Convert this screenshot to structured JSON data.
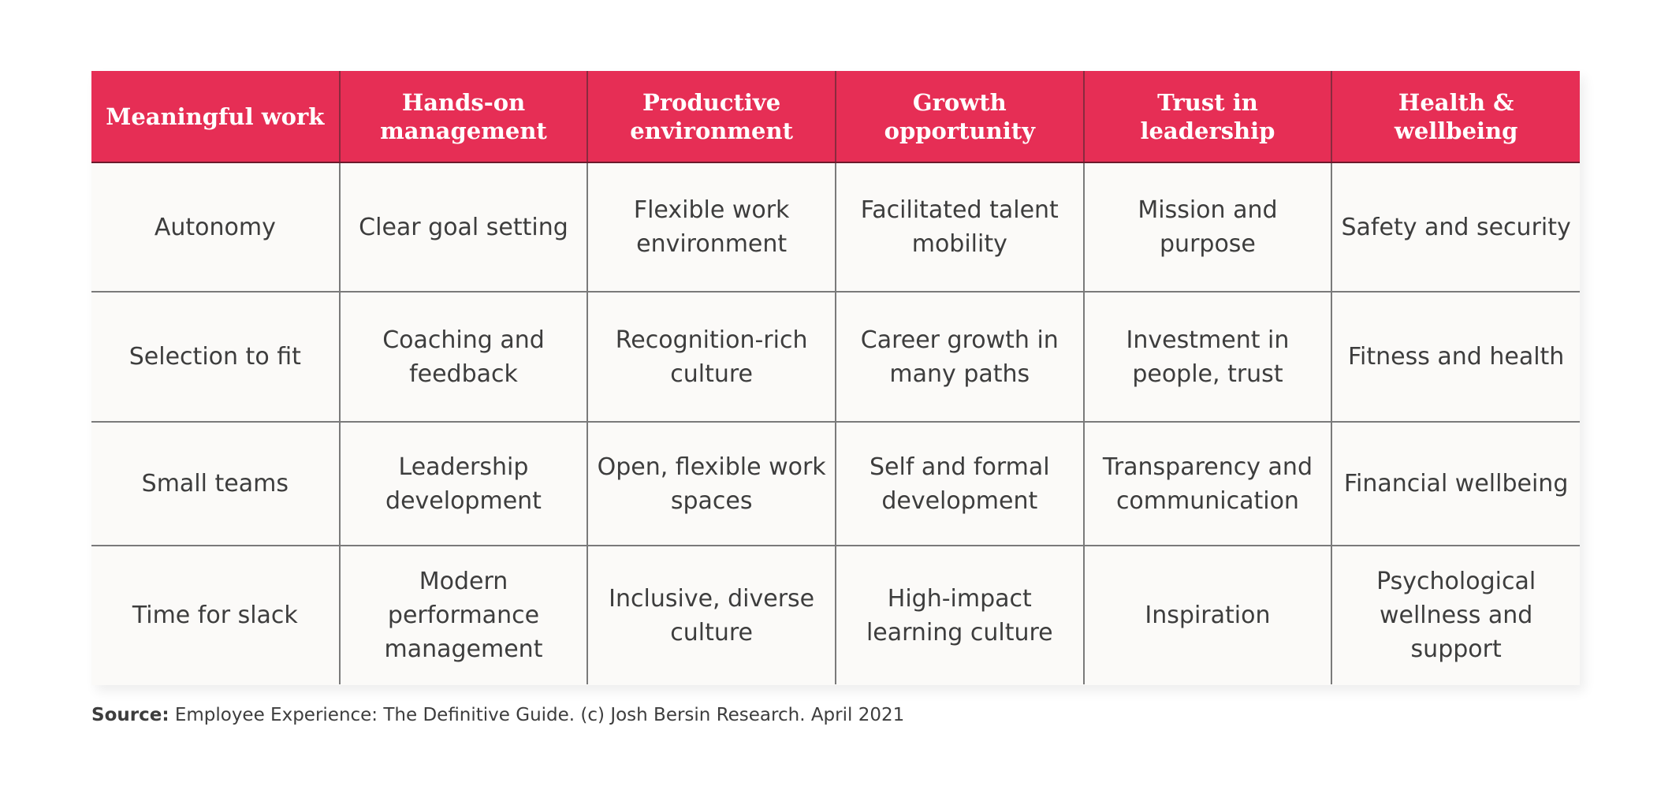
{
  "table": {
    "headers": [
      "Meaningful work",
      "Hands-on management",
      "Productive environment",
      "Growth opportunity",
      "Trust in leadership",
      "Health & wellbeing"
    ],
    "rows": [
      [
        "Autonomy",
        "Clear goal setting",
        "Flexible work environment",
        "Facilitated talent mobility",
        "Mission and purpose",
        "Safety and security"
      ],
      [
        "Selection to fit",
        "Coaching and feedback",
        "Recognition-rich culture",
        "Career growth in many paths",
        "Investment in people, trust",
        "Fitness and health"
      ],
      [
        "Small teams",
        "Leadership development",
        "Open, flexible work spaces",
        "Self and formal development",
        "Transparency and communication",
        "Financial wellbeing"
      ],
      [
        "Time for slack",
        "Modern performance management",
        "Inclusive, diverse culture",
        "High-impact learning culture",
        "Inspiration",
        "Psychological wellness and support"
      ]
    ]
  },
  "source": {
    "label": "Source:",
    "text": " Employee Experience: The Definitive Guide. (c) Josh Bersin Research. April 2021"
  },
  "colors": {
    "header_bg": "#e62e55",
    "header_text": "#ffffff",
    "body_bg": "#fbfaf8",
    "text": "#3d3d3d"
  }
}
